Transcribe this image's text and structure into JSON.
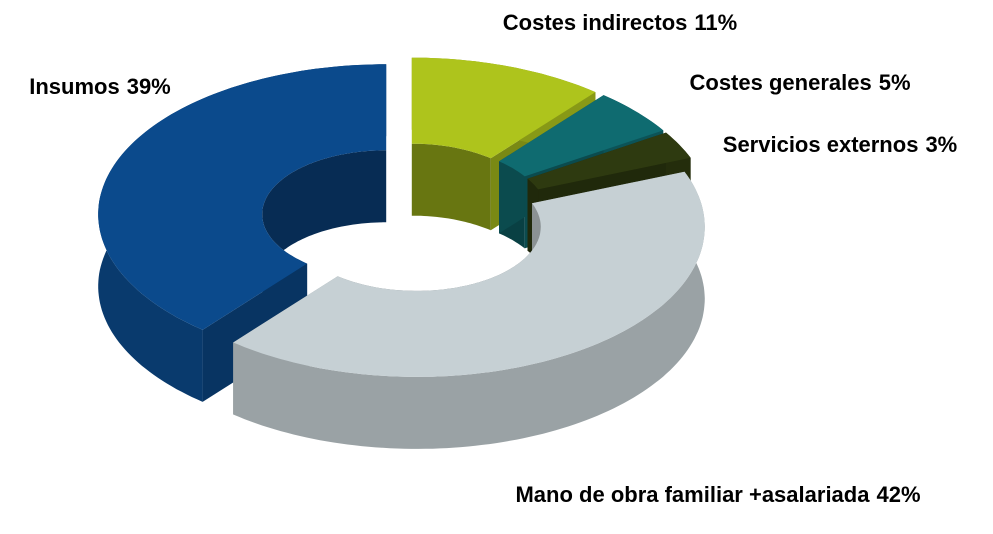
{
  "chart_data": {
    "type": "doughnut",
    "categories": [
      "Costes indirectos",
      "Costes generales",
      "Servicios externos",
      "Mano de obra familiar +asalariada",
      "Insumos"
    ],
    "values": [
      11,
      5,
      3,
      42,
      39
    ],
    "value_labels": [
      "11%",
      "5%",
      "3%",
      "42%",
      "39%"
    ],
    "colors": [
      "#aec41c",
      "#0f6b70",
      "#2e3a10",
      "#c6d0d4",
      "#0b4a8c"
    ]
  }
}
